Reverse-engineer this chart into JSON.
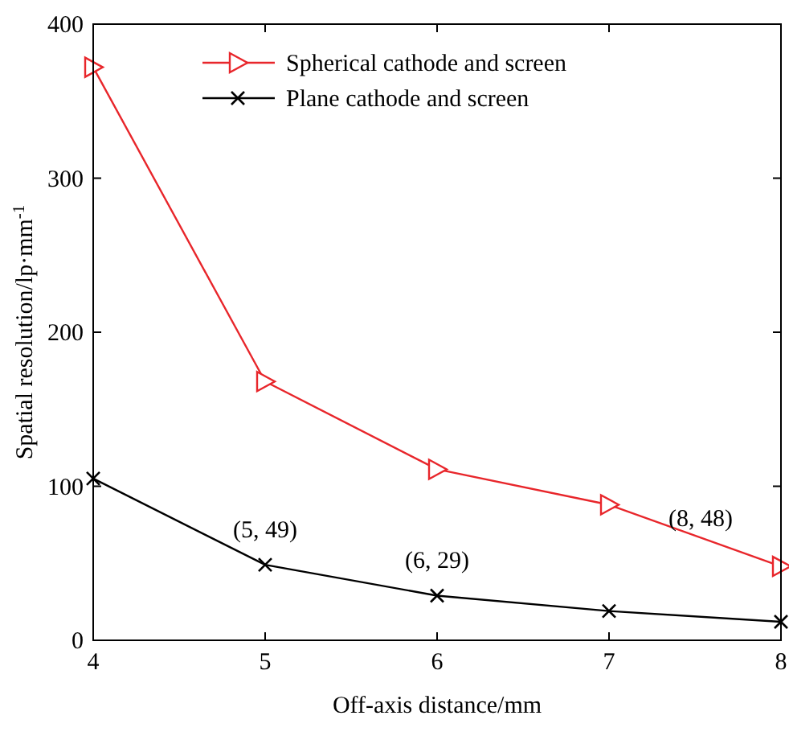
{
  "chart_data": {
    "type": "line",
    "xlabel": "Off-axis distance/mm",
    "ylabel": "Spatial resolution/lp·mm$^{-1}$",
    "x": [
      4,
      5,
      6,
      7,
      8
    ],
    "xlim": [
      4,
      8
    ],
    "xticks": [
      4,
      5,
      6,
      7,
      8
    ],
    "ylim": [
      0,
      400
    ],
    "yticks": [
      0,
      100,
      200,
      300,
      400
    ],
    "legend": "top",
    "grid": false,
    "series": [
      {
        "name": "Spherical cathode and screen",
        "color": "#e8262b",
        "marker": "triangle",
        "values": [
          372,
          168,
          111,
          88,
          48
        ]
      },
      {
        "name": "Plane cathode and screen",
        "color": "#000000",
        "marker": "cross",
        "values": [
          105,
          49,
          29,
          19,
          12
        ]
      }
    ],
    "annotations": [
      {
        "text": "(5, 49)",
        "x": 5,
        "y": 49
      },
      {
        "text": "(6, 29)",
        "x": 6,
        "y": 29
      },
      {
        "text": "(8, 48)",
        "x": 8,
        "y": 48
      }
    ]
  }
}
